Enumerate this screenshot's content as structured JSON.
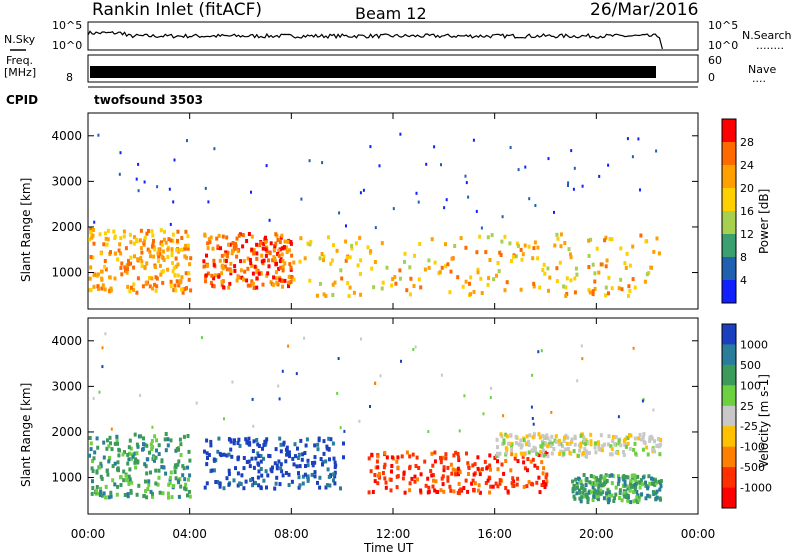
{
  "header": {
    "station_title": "Rankin Inlet (fitACF)",
    "beam_label": "Beam 12",
    "date_label": "26/Mar/2016"
  },
  "top_panels": {
    "nsky_label": "N.Sky",
    "nsearch_label": "N.Search",
    "nsearch_dots": "........",
    "noise_scale_ticks": [
      "10^5",
      "10^0"
    ],
    "freq_label": "Freq.",
    "freq_unit": "[MHz]",
    "freq_ticks": [
      "8"
    ],
    "nave_label": "Nave",
    "nave_dots": "....",
    "nave_ticks": [
      "60",
      "0"
    ],
    "cpid_label": "CPID",
    "cpid_value": "twofsound 3503"
  },
  "chart_data": [
    {
      "type": "heatmap",
      "panel": "power",
      "ylabel": "Slant Range [km]",
      "xlabel": "Time UT",
      "ylim": [
        200,
        4500
      ],
      "yticks": [
        "1000",
        "2000",
        "3000",
        "4000"
      ],
      "xticks": [
        "00:00",
        "04:00",
        "08:00",
        "12:00",
        "16:00",
        "20:00",
        "00:00"
      ],
      "colorbar_label": "Power [dB]",
      "colorbar_ticks": [
        "28",
        "24",
        "20",
        "16",
        "12",
        "8",
        "4"
      ],
      "colorbar_colors": [
        "#ff0000",
        "#ff6a00",
        "#ff9f00",
        "#ffd000",
        "#a8d050",
        "#3aa070",
        "#2060b0",
        "#1020ff"
      ],
      "regions": [
        {
          "t": [
            0.0,
            4.0
          ],
          "r": [
            600,
            2000
          ],
          "level": 20
        },
        {
          "t": [
            4.5,
            8.0
          ],
          "r": [
            700,
            1900
          ],
          "level": 24
        },
        {
          "t": [
            8.0,
            22.5
          ],
          "r": [
            500,
            1900
          ],
          "level": 18
        }
      ]
    },
    {
      "type": "heatmap",
      "panel": "velocity",
      "ylabel": "Slant Range [km]",
      "xlabel": "Time UT",
      "ylim": [
        200,
        4500
      ],
      "yticks": [
        "1000",
        "2000",
        "3000",
        "4000"
      ],
      "xticks": [
        "00:00",
        "04:00",
        "08:00",
        "12:00",
        "16:00",
        "20:00",
        "00:00"
      ],
      "colorbar_label": "Velocity [m s-1]",
      "colorbar_ticks": [
        "1000",
        "500",
        "100",
        "25",
        "-25",
        "-100",
        "-500",
        "-1000"
      ],
      "colorbar_colors": [
        "#1a3fbf",
        "#2a7d9a",
        "#3c9a5a",
        "#6cd040",
        "#c8c8c8",
        "#ffc000",
        "#ff8000",
        "#ff3000",
        "#ff0000"
      ],
      "regions": [
        {
          "t": [
            0.0,
            4.0
          ],
          "r": [
            600,
            2000
          ],
          "level": 100
        },
        {
          "t": [
            4.5,
            10.0
          ],
          "r": [
            800,
            1900
          ],
          "level": 500
        },
        {
          "t": [
            11.0,
            18.0
          ],
          "r": [
            700,
            1600
          ],
          "level": -500
        },
        {
          "t": [
            16.0,
            22.5
          ],
          "r": [
            1500,
            2000
          ],
          "level": 0
        },
        {
          "t": [
            19.0,
            22.5
          ],
          "r": [
            500,
            1100
          ],
          "level": 100
        }
      ]
    }
  ]
}
